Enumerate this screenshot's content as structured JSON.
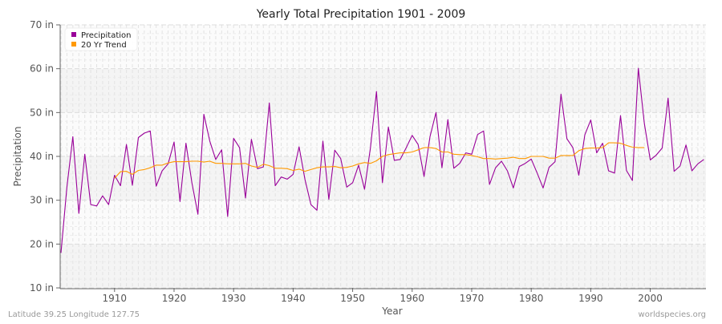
{
  "chart_data": {
    "type": "line",
    "title": "Yearly Total Precipitation 1901 - 2009",
    "xlabel": "Year",
    "ylabel": "Precipitation",
    "xlim": [
      1901,
      2009
    ],
    "ylim": [
      10,
      70
    ],
    "grid": true,
    "legend_placement": "top-left",
    "x_ticks": [
      1910,
      1920,
      1930,
      1940,
      1950,
      1960,
      1970,
      1980,
      1990,
      2000
    ],
    "y_ticks": [
      10,
      20,
      30,
      40,
      50,
      60,
      70
    ],
    "y_tick_labels": [
      "10 in",
      "20 in",
      "30 in",
      "40 in",
      "50 in",
      "60 in",
      "70 in"
    ],
    "series": [
      {
        "name": "Precipitation",
        "color": "#990099",
        "start_year": 1901,
        "values": [
          18,
          33,
          44.5,
          27,
          40.5,
          29,
          28.7,
          31,
          29,
          35.7,
          33.3,
          42.7,
          33.4,
          44.3,
          45.3,
          45.8,
          33.2,
          36.7,
          38.3,
          43.3,
          29.7,
          43,
          34,
          26.8,
          49.6,
          43.5,
          39.3,
          41.5,
          26.3,
          44.1,
          42,
          30.5,
          43.9,
          37.2,
          37.6,
          52.2,
          33.3,
          35.3,
          34.8,
          35.9,
          42.2,
          34.7,
          29,
          27.7,
          43.5,
          30.2,
          41.4,
          39.5,
          33,
          34,
          38,
          32.5,
          42,
          54.8,
          34,
          46.7,
          39.1,
          39.3,
          42,
          44.8,
          42.7,
          35.4,
          44.5,
          50,
          37.4,
          48.4,
          37.3,
          38.4,
          40.8,
          40.5,
          45,
          45.8,
          33.6,
          37.4,
          38.9,
          36.7,
          32.8,
          37.7,
          38.4,
          39.4,
          36.2,
          32.8,
          37.5,
          38.8,
          54.2,
          44,
          42,
          35.7,
          44.9,
          48.3,
          40.8,
          43,
          36.7,
          36.2,
          49.3,
          36.8,
          34.5,
          60.1,
          47.5,
          39.2,
          40.3,
          41.9,
          53.3,
          36.6,
          37.8,
          42.6,
          36.7,
          38.3,
          39.3
        ]
      },
      {
        "name": "20 Yr Trend",
        "color": "#ff9900",
        "start_year": 1910,
        "values": [
          35.0,
          36.5,
          36.6,
          35.9,
          36.8,
          37.0,
          37.4,
          38.0,
          38.0,
          38.5,
          38.8,
          38.8,
          38.8,
          38.9,
          38.9,
          38.7,
          38.9,
          38.4,
          38.4,
          38.3,
          38.3,
          38.3,
          38.4,
          37.8,
          37.5,
          38.2,
          37.9,
          37.3,
          37.3,
          37.2,
          36.8,
          37.1,
          36.6,
          37.0,
          37.4,
          37.6,
          37.6,
          37.7,
          37.4,
          37.5,
          37.8,
          38.3,
          38.6,
          38.4,
          39.0,
          40.0,
          40.4,
          40.6,
          40.8,
          40.8,
          41.0,
          41.5,
          42.0,
          42.0,
          41.8,
          41.0,
          41.0,
          40.5,
          40.4,
          40.4,
          40.2,
          39.9,
          39.5,
          39.5,
          39.4,
          39.5,
          39.6,
          39.8,
          39.5,
          39.5,
          40.0,
          40.0,
          40.0,
          39.6,
          39.6,
          40.2,
          40.2,
          40.2,
          41.3,
          41.8,
          41.9,
          41.9,
          42.0,
          43.1,
          43.1,
          43.0,
          42.5,
          42.1,
          42.0,
          42.0
        ]
      }
    ]
  },
  "footer": {
    "location": "Latitude 39.25 Longitude 127.75",
    "source": "worldspecies.org"
  }
}
